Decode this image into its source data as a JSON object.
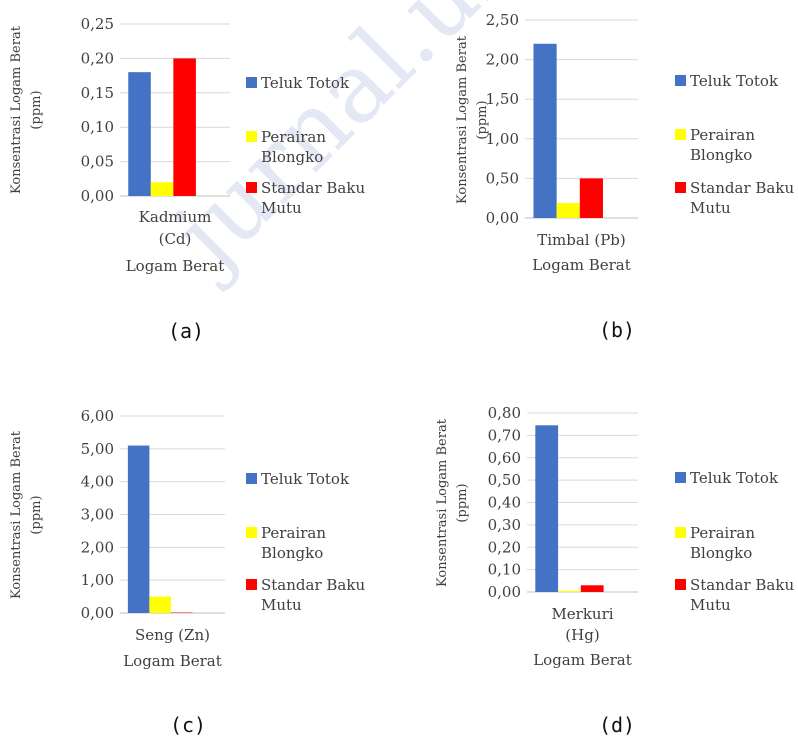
{
  "chart_data": [
    {
      "type": "bar",
      "panel_label": "(a)",
      "categories": [
        "Kadmium (Cd)"
      ],
      "category_lines": [
        "Kadmium",
        "(Cd)"
      ],
      "series": [
        {
          "name": "Teluk Totok",
          "values": [
            0.18
          ]
        },
        {
          "name": "Perairan Blongko",
          "values": [
            0.02
          ]
        },
        {
          "name": "Standar Baku Mutu",
          "values": [
            0.2
          ]
        }
      ],
      "xlabel": "Logam Berat",
      "ylabel": "Konsentrasi Logam Berat (ppm)",
      "ylabel_lines": [
        "Konsentrasi Logam Berat",
        "(ppm)"
      ],
      "ylim": [
        0,
        0.25
      ],
      "yticks": [
        "0,00",
        "0,05",
        "0,10",
        "0,15",
        "0,20",
        "0,25"
      ],
      "grid": true,
      "legend_position": "right"
    },
    {
      "type": "bar",
      "panel_label": "(b)",
      "categories": [
        "Timbal (Pb)"
      ],
      "category_lines": [
        "Timbal (Pb)"
      ],
      "series": [
        {
          "name": "Teluk Totok",
          "values": [
            2.2
          ]
        },
        {
          "name": "Perairan Blongko",
          "values": [
            0.19
          ]
        },
        {
          "name": "Standar Baku Mutu",
          "values": [
            0.5
          ]
        }
      ],
      "xlabel": "Logam Berat",
      "ylabel": "Konsentrasi Logam Berat (ppm)",
      "ylabel_lines": [
        "Konsentrasi Logam Berat",
        "(ppm)"
      ],
      "ylim": [
        0,
        2.5
      ],
      "yticks": [
        "0,00",
        "0,50",
        "1,00",
        "1,50",
        "2,00",
        "2,50"
      ],
      "grid": true,
      "legend_position": "right"
    },
    {
      "type": "bar",
      "panel_label": "(c)",
      "categories": [
        "Seng (Zn)"
      ],
      "category_lines": [
        "Seng (Zn)"
      ],
      "series": [
        {
          "name": "Teluk Totok",
          "values": [
            5.1
          ]
        },
        {
          "name": "Perairan Blongko",
          "values": [
            0.5
          ]
        },
        {
          "name": "Standar Baku Mutu",
          "values": [
            0.0
          ]
        }
      ],
      "xlabel": "Logam Berat",
      "ylabel": "Konsentrasi Logam Berat (ppm)",
      "ylabel_lines": [
        "Konsentrasi Logam Berat",
        "(ppm)"
      ],
      "ylim": [
        0,
        6
      ],
      "yticks": [
        "0,00",
        "1,00",
        "2,00",
        "3,00",
        "4,00",
        "5,00",
        "6,00"
      ],
      "grid": true,
      "legend_position": "right"
    },
    {
      "type": "bar",
      "panel_label": "(d)",
      "categories": [
        "Merkuri (Hg)"
      ],
      "category_lines": [
        "Merkuri",
        "(Hg)"
      ],
      "series": [
        {
          "name": "Teluk Totok",
          "values": [
            0.745
          ]
        },
        {
          "name": "Perairan Blongko",
          "values": [
            0.005
          ]
        },
        {
          "name": "Standar Baku Mutu",
          "values": [
            0.03
          ]
        }
      ],
      "xlabel": "Logam Berat",
      "ylabel": "Konsentrasi Logam Berat (ppm)",
      "ylabel_lines": [
        "Konsentrasi Logam Berat",
        "(ppm)"
      ],
      "ylim": [
        0,
        0.8
      ],
      "yticks": [
        "0,00",
        "0,10",
        "0,20",
        "0,30",
        "0,40",
        "0,50",
        "0,60",
        "0,70",
        "0,80"
      ],
      "grid": true,
      "legend_position": "right"
    }
  ],
  "legend": {
    "items": [
      {
        "lines": [
          "Teluk Totok"
        ],
        "color": "#4472c4"
      },
      {
        "lines": [
          "Perairan",
          "Blongko"
        ],
        "color": "#ffff00"
      },
      {
        "lines": [
          "Standar Baku",
          "Mutu"
        ],
        "color": "#ff0000"
      }
    ]
  },
  "colors": {
    "teluk_totok": "#4472c4",
    "perairan_blongko": "#ffff00",
    "standar_baku_mutu": "#ff0000",
    "grid": "#d9d9d9",
    "axis": "#bfbfbf",
    "watermark": "#e3e8f4"
  },
  "watermark": {
    "text": "jurnal.unsrat.ac.id"
  }
}
